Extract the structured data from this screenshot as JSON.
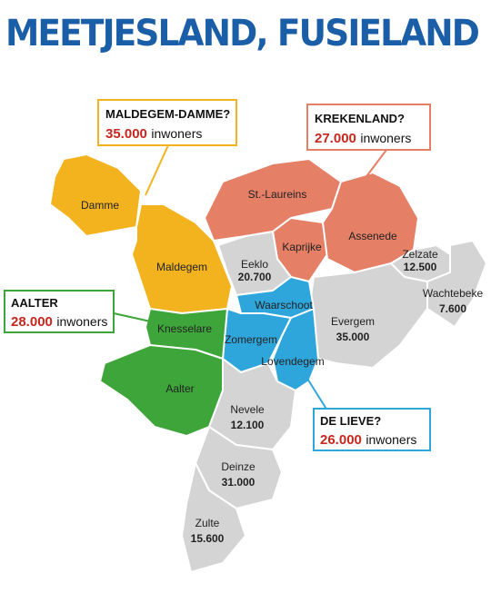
{
  "title": "MEETJESLAND, FUSIELAND",
  "callouts": [
    {
      "name": "MALDEGEM-DAMME?",
      "population": "35.000",
      "unit": "inwoners"
    },
    {
      "name": "KREKENLAND?",
      "population": "27.000",
      "unit": "inwoners"
    },
    {
      "name": "AALTER",
      "population": "28.000",
      "unit": "inwoners"
    },
    {
      "name": "DE LIEVE?",
      "population": "26.000",
      "unit": "inwoners"
    }
  ],
  "municipalities": [
    {
      "name": "Damme"
    },
    {
      "name": "Maldegem"
    },
    {
      "name": "St.-Laureins"
    },
    {
      "name": "Kaprijke"
    },
    {
      "name": "Assenede"
    },
    {
      "name": "Eeklo",
      "population": "20.700"
    },
    {
      "name": "Zelzate",
      "population": "12.500"
    },
    {
      "name": "Wachtebeke",
      "population": "7.600"
    },
    {
      "name": "Evergem",
      "population": "35.000"
    },
    {
      "name": "Waarschoot"
    },
    {
      "name": "Zomergem"
    },
    {
      "name": "Lovendegem"
    },
    {
      "name": "Knesselare"
    },
    {
      "name": "Aalter"
    },
    {
      "name": "Nevele",
      "population": "12.100"
    },
    {
      "name": "Deinze",
      "population": "31.000"
    },
    {
      "name": "Zulte",
      "population": "15.600"
    }
  ]
}
